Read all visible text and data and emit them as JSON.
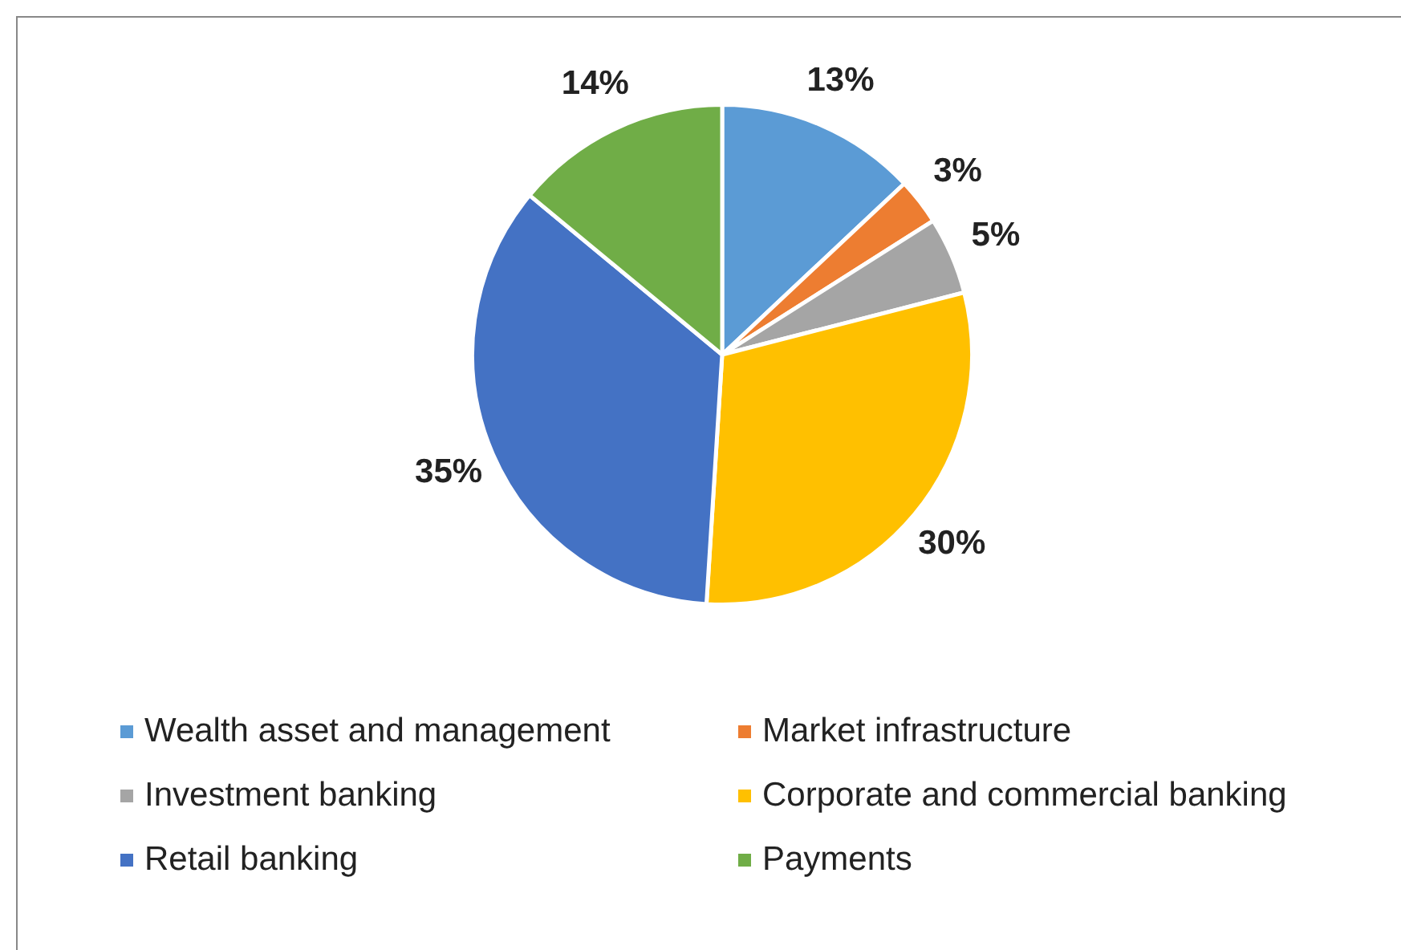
{
  "chart_data": {
    "type": "pie",
    "categories": [
      "Wealth asset and management",
      "Market infrastructure",
      "Investment banking",
      "Corporate and commercial banking",
      "Retail banking",
      "Payments"
    ],
    "values": [
      13,
      3,
      5,
      30,
      35,
      14
    ],
    "colors": [
      "#5b9bd5",
      "#ed7d31",
      "#a5a5a5",
      "#ffc000",
      "#4472c4",
      "#70ad47"
    ],
    "value_labels": [
      "13%",
      "3%",
      "5%",
      "30%",
      "35%",
      "14%"
    ],
    "legend": "bottom"
  }
}
